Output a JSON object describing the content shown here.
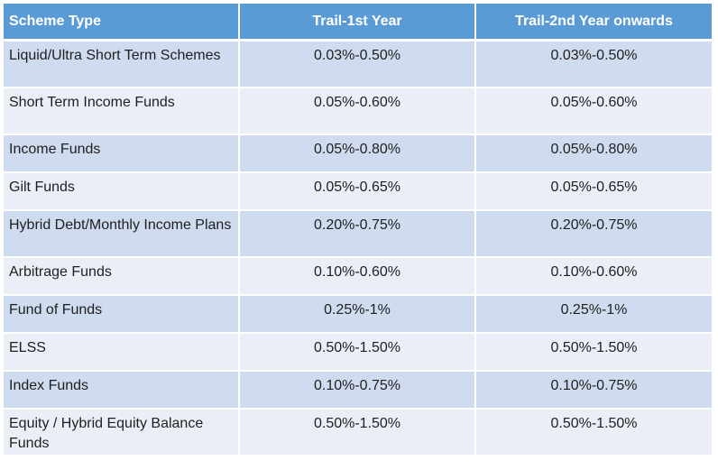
{
  "table": {
    "headers": [
      "Scheme Type",
      "Trail-1st Year",
      "Trail-2nd Year onwards"
    ],
    "rows": [
      {
        "scheme": "Liquid/Ultra Short Term Schemes",
        "year1": "0.03%-0.50%",
        "year2": "0.03%-0.50%"
      },
      {
        "scheme": "Short Term Income Funds",
        "year1": "0.05%-0.60%",
        "year2": "0.05%-0.60%"
      },
      {
        "scheme": "Income Funds",
        "year1": "0.05%-0.80%",
        "year2": "0.05%-0.80%"
      },
      {
        "scheme": "Gilt Funds",
        "year1": "0.05%-0.65%",
        "year2": "0.05%-0.65%"
      },
      {
        "scheme": "Hybrid Debt/Monthly Income Plans",
        "year1": "0.20%-0.75%",
        "year2": "0.20%-0.75%"
      },
      {
        "scheme": "Arbitrage Funds",
        "year1": "0.10%-0.60%",
        "year2": "0.10%-0.60%"
      },
      {
        "scheme": "Fund of Funds",
        "year1": "0.25%-1%",
        "year2": "0.25%-1%"
      },
      {
        "scheme": "ELSS",
        "year1": "0.50%-1.50%",
        "year2": "0.50%-1.50%"
      },
      {
        "scheme": "Index Funds",
        "year1": "0.10%-0.75%",
        "year2": "0.10%-0.75%"
      },
      {
        "scheme": "Equity / Hybrid Equity Balance Funds",
        "year1": "0.50%-1.50%",
        "year2": "0.50%-1.50%"
      }
    ]
  },
  "colors": {
    "header_bg": "#5b9bd5",
    "row_odd_bg": "#cfdbee",
    "row_even_bg": "#e9eef7"
  }
}
